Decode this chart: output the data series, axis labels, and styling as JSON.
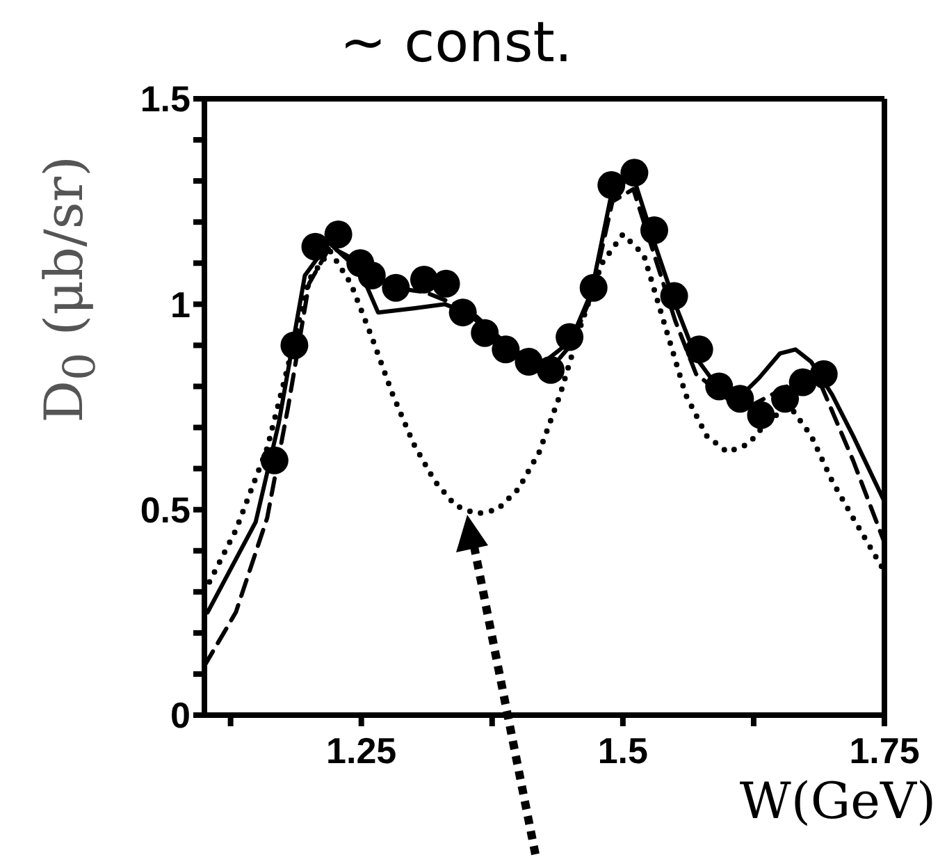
{
  "chart_data": {
    "type": "line",
    "title": "~ const.",
    "xlabel": "W(GeV)",
    "ylabel": "D$_{0}$ (μb/sr)",
    "xlim": [
      1.1,
      1.75
    ],
    "xticks": [
      {
        "value": 1.125,
        "label": null
      },
      1.25,
      {
        "value": 1.375,
        "label": null
      },
      1.5,
      {
        "value": 1.625,
        "label": null
      },
      1.75
    ],
    "ylim": [
      0,
      1.5
    ],
    "yticks": [
      0,
      {
        "value": 0.1,
        "label": null
      },
      {
        "value": 0.2,
        "label": null
      },
      {
        "value": 0.3,
        "label": null
      },
      {
        "value": 0.4,
        "label": null
      },
      0.5,
      {
        "value": 0.6,
        "label": null
      },
      {
        "value": 0.7,
        "label": null
      },
      {
        "value": 0.8,
        "label": null
      },
      {
        "value": 0.9,
        "label": null
      },
      1,
      {
        "value": 1.1,
        "label": null
      },
      {
        "value": 1.2,
        "label": null
      },
      {
        "value": 1.3,
        "label": null
      },
      {
        "value": 1.4,
        "label": null
      },
      1.5
    ],
    "grid": false,
    "series": [
      {
        "line_style": "dotted",
        "marker": "none",
        "color": "#000000",
        "x": [
          1.1,
          1.13,
          1.16,
          1.18,
          1.2,
          1.22,
          1.24,
          1.26,
          1.28,
          1.3,
          1.32,
          1.34,
          1.36,
          1.38,
          1.4,
          1.42,
          1.44,
          1.46,
          1.48,
          1.5,
          1.52,
          1.54,
          1.56,
          1.58,
          1.6,
          1.62,
          1.64,
          1.66,
          1.68,
          1.7,
          1.72,
          1.75
        ],
        "values": [
          0.3,
          0.45,
          0.65,
          0.85,
          1.06,
          1.13,
          1.05,
          0.92,
          0.78,
          0.66,
          0.57,
          0.51,
          0.49,
          0.5,
          0.55,
          0.64,
          0.78,
          0.95,
          1.1,
          1.17,
          1.12,
          0.95,
          0.78,
          0.68,
          0.64,
          0.66,
          0.72,
          0.75,
          0.68,
          0.57,
          0.48,
          0.35
        ]
      },
      {
        "line_style": "dashed",
        "marker": "none",
        "color": "#000000",
        "x": [
          1.1,
          1.13,
          1.16,
          1.18,
          1.2,
          1.22,
          1.25,
          1.28,
          1.31,
          1.34,
          1.37,
          1.4,
          1.43,
          1.45,
          1.47,
          1.49,
          1.51,
          1.53,
          1.55,
          1.57,
          1.6,
          1.62,
          1.65,
          1.67,
          1.69,
          1.72,
          1.75
        ],
        "values": [
          0.12,
          0.25,
          0.48,
          0.75,
          1.05,
          1.14,
          1.1,
          1.04,
          1.03,
          1.0,
          0.94,
          0.88,
          0.84,
          0.9,
          1.02,
          1.25,
          1.28,
          1.12,
          0.96,
          0.83,
          0.77,
          0.75,
          0.79,
          0.82,
          0.8,
          0.62,
          0.42
        ]
      },
      {
        "line_style": "solid",
        "marker": "none",
        "color": "#000000",
        "x": [
          1.103,
          1.149,
          1.171,
          1.196,
          1.219,
          1.249,
          1.266,
          1.3,
          1.33,
          1.36,
          1.39,
          1.42,
          1.45,
          1.47,
          1.49,
          1.51,
          1.53,
          1.55,
          1.57,
          1.59,
          1.61,
          1.63,
          1.65,
          1.665,
          1.68,
          1.7,
          1.72,
          1.75
        ],
        "values": [
          0.25,
          0.47,
          0.71,
          1.07,
          1.15,
          1.08,
          0.98,
          0.99,
          1.0,
          0.97,
          0.9,
          0.85,
          0.91,
          1.03,
          1.28,
          1.31,
          1.15,
          1.0,
          0.87,
          0.8,
          0.77,
          0.82,
          0.88,
          0.89,
          0.86,
          0.78,
          0.68,
          0.52
        ]
      },
      {
        "type": "scatter",
        "marker": "circle",
        "color": "#000000",
        "x": [
          1.167,
          1.186,
          1.206,
          1.228,
          1.249,
          1.26,
          1.283,
          1.31,
          1.331,
          1.347,
          1.368,
          1.388,
          1.41,
          1.431,
          1.449,
          1.472,
          1.489,
          1.511,
          1.53,
          1.549,
          1.573,
          1.592,
          1.612,
          1.632,
          1.655,
          1.672,
          1.692
        ],
        "values": [
          0.62,
          0.9,
          1.14,
          1.17,
          1.1,
          1.07,
          1.04,
          1.06,
          1.05,
          0.98,
          0.93,
          0.89,
          0.86,
          0.84,
          0.92,
          1.04,
          1.29,
          1.32,
          1.18,
          1.02,
          0.89,
          0.8,
          0.77,
          0.73,
          0.77,
          0.81,
          0.83
        ]
      }
    ]
  }
}
